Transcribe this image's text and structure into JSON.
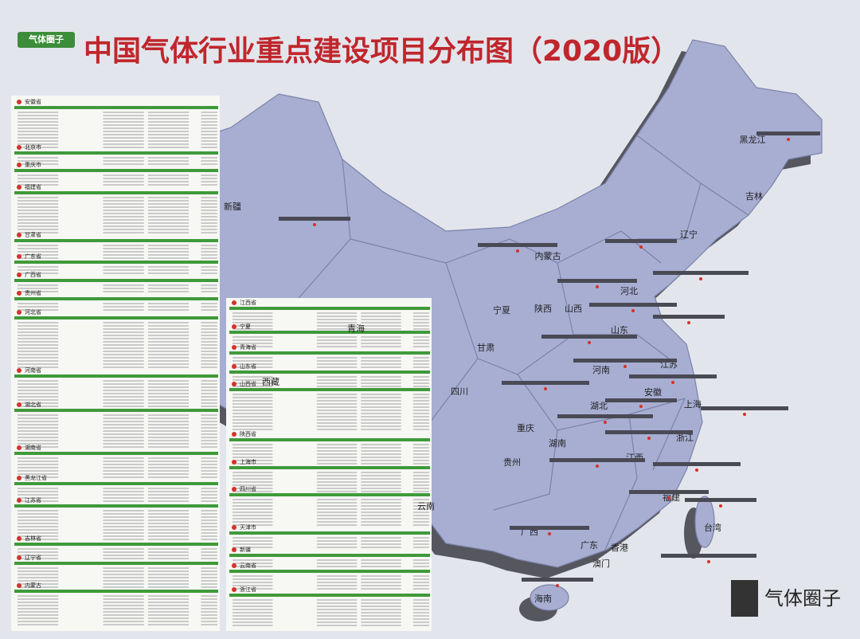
{
  "header": {
    "logo": "气体圈子",
    "title": "中国气体行业重点建设项目分布图（2020版）"
  },
  "left_sections": [
    "安徽省",
    "北京市",
    "重庆市",
    "福建省",
    "甘肃省",
    "广东省",
    "广西省",
    "贵州省",
    "河北省",
    "河南省",
    "湖北省",
    "湖南省",
    "黑龙江省",
    "江苏省",
    "吉林省",
    "辽宁省",
    "内蒙古"
  ],
  "middle_sections": [
    "江西省",
    "宁夏",
    "青海省",
    "山东省",
    "山西省",
    "陕西省",
    "上海市",
    "四川省",
    "天津市",
    "新疆",
    "云南省",
    "浙江省"
  ],
  "regions": [
    "新疆",
    "西藏",
    "青海",
    "甘肃",
    "内蒙古",
    "宁夏",
    "陕西",
    "山西",
    "河北",
    "山东",
    "河南",
    "江苏",
    "安徽",
    "上海",
    "浙江",
    "湖北",
    "湖南",
    "四川",
    "重庆",
    "贵州",
    "云南",
    "广西",
    "广东",
    "香港",
    "澳门",
    "海南",
    "福建",
    "江西",
    "台湾",
    "辽宁",
    "吉林",
    "黑龙江"
  ],
  "watermark": "气体圈子"
}
